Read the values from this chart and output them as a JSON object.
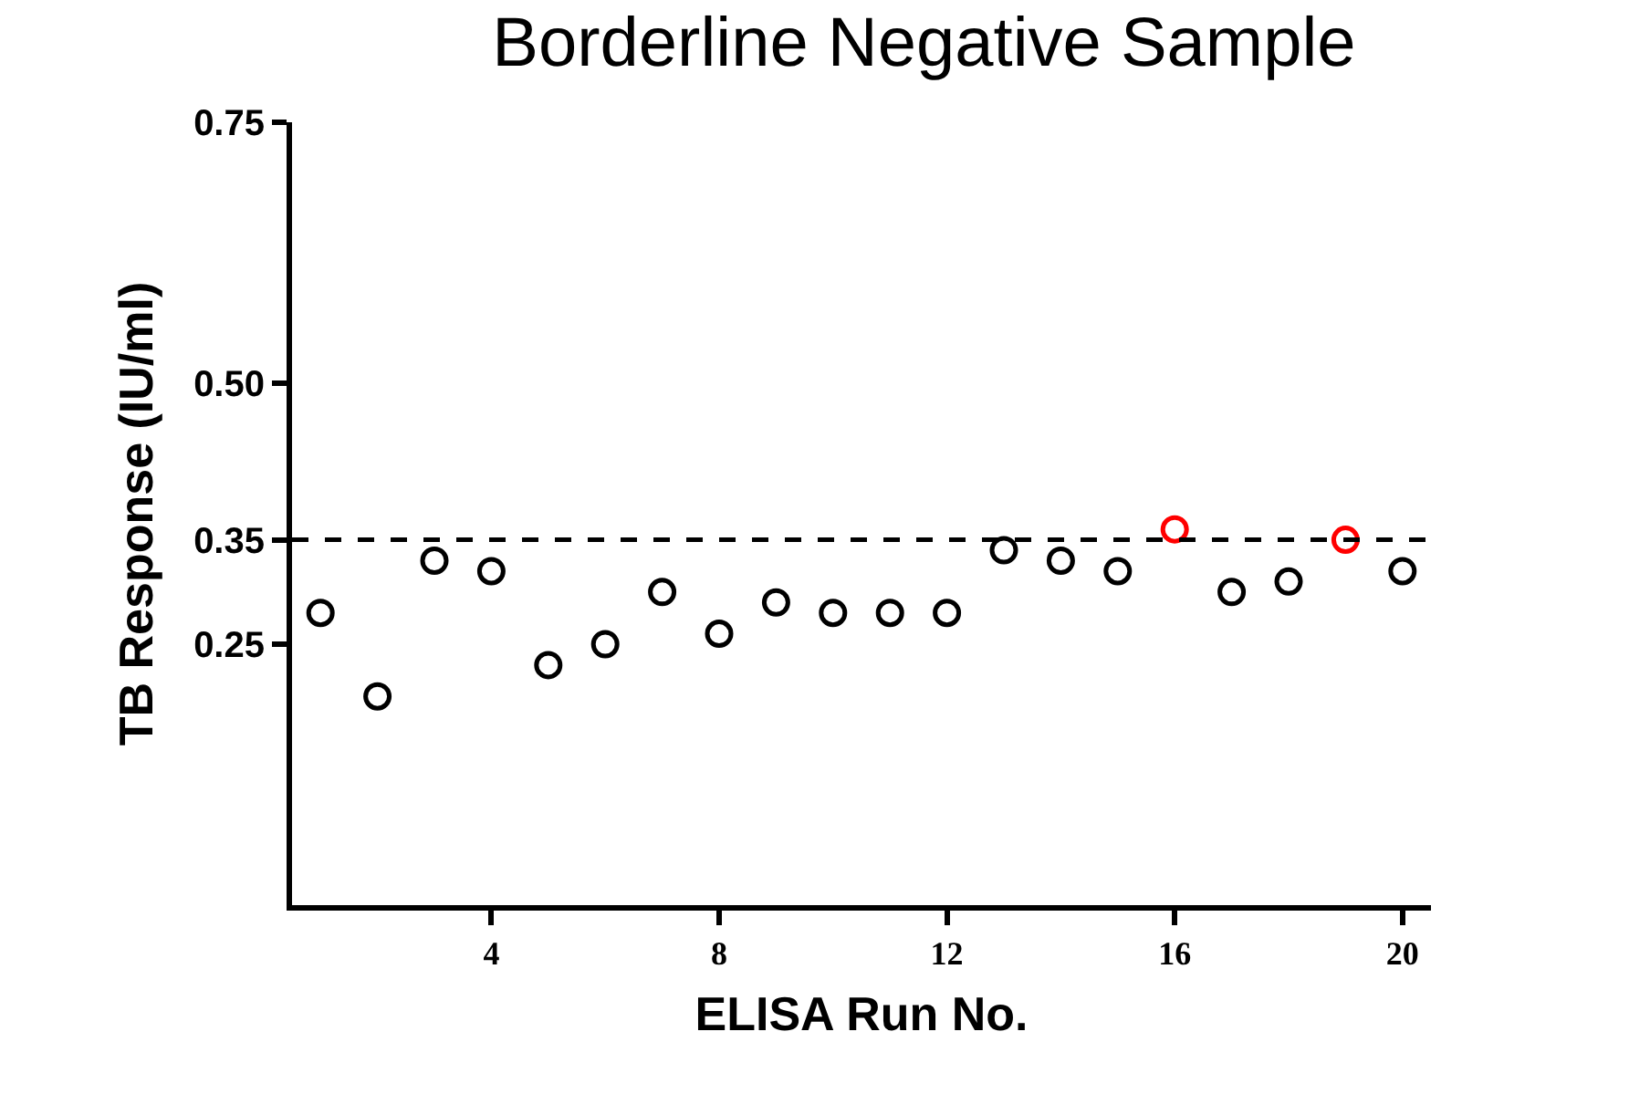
{
  "chart_data": {
    "type": "scatter",
    "title": "Borderline Negative Sample",
    "xlabel": "ELISA Run No.",
    "ylabel": "TB Response (IU/ml)",
    "x": [
      1,
      2,
      3,
      4,
      5,
      6,
      7,
      8,
      9,
      10,
      11,
      12,
      13,
      14,
      15,
      16,
      17,
      18,
      19,
      20
    ],
    "series": [
      {
        "values": [
          0.28,
          0.2,
          0.33,
          0.32,
          0.23,
          0.25,
          0.3,
          0.26,
          0.29,
          0.28,
          0.28,
          0.28,
          0.34,
          0.33,
          0.32,
          0.36,
          0.3,
          0.31,
          0.35,
          0.32
        ],
        "colors": [
          "#000000",
          "#000000",
          "#000000",
          "#000000",
          "#000000",
          "#000000",
          "#000000",
          "#000000",
          "#000000",
          "#000000",
          "#000000",
          "#000000",
          "#000000",
          "#000000",
          "#000000",
          "#ff0000",
          "#000000",
          "#000000",
          "#ff0000",
          "#000000"
        ]
      }
    ],
    "xlim": [
      0.5,
      20.5
    ],
    "xticks": [
      4,
      8,
      12,
      16,
      20
    ],
    "ylim": [
      0,
      0.75
    ],
    "yticks": [
      {
        "value": 0.25,
        "label": "0.25"
      },
      {
        "value": 0.35,
        "label": "0.35"
      },
      {
        "value": 0.5,
        "label": "0.50"
      },
      {
        "value": 0.75,
        "label": "0.75"
      }
    ],
    "ref_lines": [
      {
        "axis": "y",
        "value": 0.35,
        "color": "#000000",
        "line_style": "dashed"
      }
    ],
    "marker": "circle"
  }
}
